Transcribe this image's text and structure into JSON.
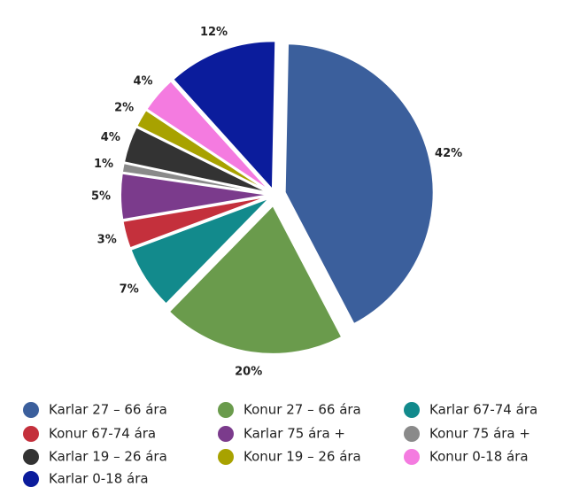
{
  "chart_data": {
    "type": "pie",
    "categories": [
      "Karlar 27 – 66 ára",
      "Konur 27 – 66 ára",
      "Karlar 67-74 ára",
      "Konur 67-74 ára",
      "Karlar 75 ára +",
      "Konur 75 ára +",
      "Karlar 19 – 26 ára",
      "Konur 19 – 26 ára",
      "Konur 0-18 ára",
      "Karlar 0-18 ára"
    ],
    "values": [
      42,
      20,
      7,
      3,
      5,
      1,
      4,
      2,
      4,
      12
    ],
    "value_labels": [
      "42%",
      "20%",
      "7%",
      "3%",
      "5%",
      "1%",
      "4%",
      "2%",
      "4%",
      "12%"
    ],
    "colors": [
      "#3b5f9c",
      "#6a9b4c",
      "#128a8c",
      "#c4303c",
      "#7b3b8c",
      "#8a8a8a",
      "#333333",
      "#a8a200",
      "#f47be0",
      "#0b1c9c"
    ],
    "legend": "bottom"
  }
}
